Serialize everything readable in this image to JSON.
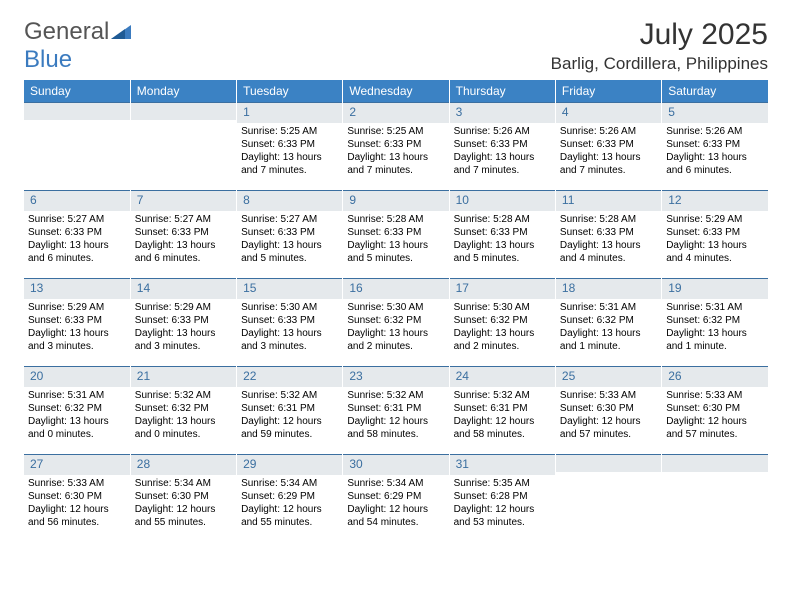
{
  "logo": {
    "text1": "General",
    "text2": "Blue"
  },
  "title": "July 2025",
  "location": "Barlig, Cordillera, Philippines",
  "colors": {
    "header_bg": "#3b82c4",
    "header_text": "#ffffff",
    "daynum_bg": "#e5e9ec",
    "daynum_text": "#3b6fa0",
    "border": "#3b6fa0",
    "logo_blue": "#3b7bbf"
  },
  "weekdays": [
    "Sunday",
    "Monday",
    "Tuesday",
    "Wednesday",
    "Thursday",
    "Friday",
    "Saturday"
  ],
  "weeks": [
    [
      null,
      null,
      {
        "n": "1",
        "sr": "5:25 AM",
        "ss": "6:33 PM",
        "dl": "13 hours and 7 minutes."
      },
      {
        "n": "2",
        "sr": "5:25 AM",
        "ss": "6:33 PM",
        "dl": "13 hours and 7 minutes."
      },
      {
        "n": "3",
        "sr": "5:26 AM",
        "ss": "6:33 PM",
        "dl": "13 hours and 7 minutes."
      },
      {
        "n": "4",
        "sr": "5:26 AM",
        "ss": "6:33 PM",
        "dl": "13 hours and 7 minutes."
      },
      {
        "n": "5",
        "sr": "5:26 AM",
        "ss": "6:33 PM",
        "dl": "13 hours and 6 minutes."
      }
    ],
    [
      {
        "n": "6",
        "sr": "5:27 AM",
        "ss": "6:33 PM",
        "dl": "13 hours and 6 minutes."
      },
      {
        "n": "7",
        "sr": "5:27 AM",
        "ss": "6:33 PM",
        "dl": "13 hours and 6 minutes."
      },
      {
        "n": "8",
        "sr": "5:27 AM",
        "ss": "6:33 PM",
        "dl": "13 hours and 5 minutes."
      },
      {
        "n": "9",
        "sr": "5:28 AM",
        "ss": "6:33 PM",
        "dl": "13 hours and 5 minutes."
      },
      {
        "n": "10",
        "sr": "5:28 AM",
        "ss": "6:33 PM",
        "dl": "13 hours and 5 minutes."
      },
      {
        "n": "11",
        "sr": "5:28 AM",
        "ss": "6:33 PM",
        "dl": "13 hours and 4 minutes."
      },
      {
        "n": "12",
        "sr": "5:29 AM",
        "ss": "6:33 PM",
        "dl": "13 hours and 4 minutes."
      }
    ],
    [
      {
        "n": "13",
        "sr": "5:29 AM",
        "ss": "6:33 PM",
        "dl": "13 hours and 3 minutes."
      },
      {
        "n": "14",
        "sr": "5:29 AM",
        "ss": "6:33 PM",
        "dl": "13 hours and 3 minutes."
      },
      {
        "n": "15",
        "sr": "5:30 AM",
        "ss": "6:33 PM",
        "dl": "13 hours and 3 minutes."
      },
      {
        "n": "16",
        "sr": "5:30 AM",
        "ss": "6:32 PM",
        "dl": "13 hours and 2 minutes."
      },
      {
        "n": "17",
        "sr": "5:30 AM",
        "ss": "6:32 PM",
        "dl": "13 hours and 2 minutes."
      },
      {
        "n": "18",
        "sr": "5:31 AM",
        "ss": "6:32 PM",
        "dl": "13 hours and 1 minute."
      },
      {
        "n": "19",
        "sr": "5:31 AM",
        "ss": "6:32 PM",
        "dl": "13 hours and 1 minute."
      }
    ],
    [
      {
        "n": "20",
        "sr": "5:31 AM",
        "ss": "6:32 PM",
        "dl": "13 hours and 0 minutes."
      },
      {
        "n": "21",
        "sr": "5:32 AM",
        "ss": "6:32 PM",
        "dl": "13 hours and 0 minutes."
      },
      {
        "n": "22",
        "sr": "5:32 AM",
        "ss": "6:31 PM",
        "dl": "12 hours and 59 minutes."
      },
      {
        "n": "23",
        "sr": "5:32 AM",
        "ss": "6:31 PM",
        "dl": "12 hours and 58 minutes."
      },
      {
        "n": "24",
        "sr": "5:32 AM",
        "ss": "6:31 PM",
        "dl": "12 hours and 58 minutes."
      },
      {
        "n": "25",
        "sr": "5:33 AM",
        "ss": "6:30 PM",
        "dl": "12 hours and 57 minutes."
      },
      {
        "n": "26",
        "sr": "5:33 AM",
        "ss": "6:30 PM",
        "dl": "12 hours and 57 minutes."
      }
    ],
    [
      {
        "n": "27",
        "sr": "5:33 AM",
        "ss": "6:30 PM",
        "dl": "12 hours and 56 minutes."
      },
      {
        "n": "28",
        "sr": "5:34 AM",
        "ss": "6:30 PM",
        "dl": "12 hours and 55 minutes."
      },
      {
        "n": "29",
        "sr": "5:34 AM",
        "ss": "6:29 PM",
        "dl": "12 hours and 55 minutes."
      },
      {
        "n": "30",
        "sr": "5:34 AM",
        "ss": "6:29 PM",
        "dl": "12 hours and 54 minutes."
      },
      {
        "n": "31",
        "sr": "5:35 AM",
        "ss": "6:28 PM",
        "dl": "12 hours and 53 minutes."
      },
      null,
      null
    ]
  ],
  "labels": {
    "sunrise": "Sunrise:",
    "sunset": "Sunset:",
    "daylight": "Daylight:"
  }
}
